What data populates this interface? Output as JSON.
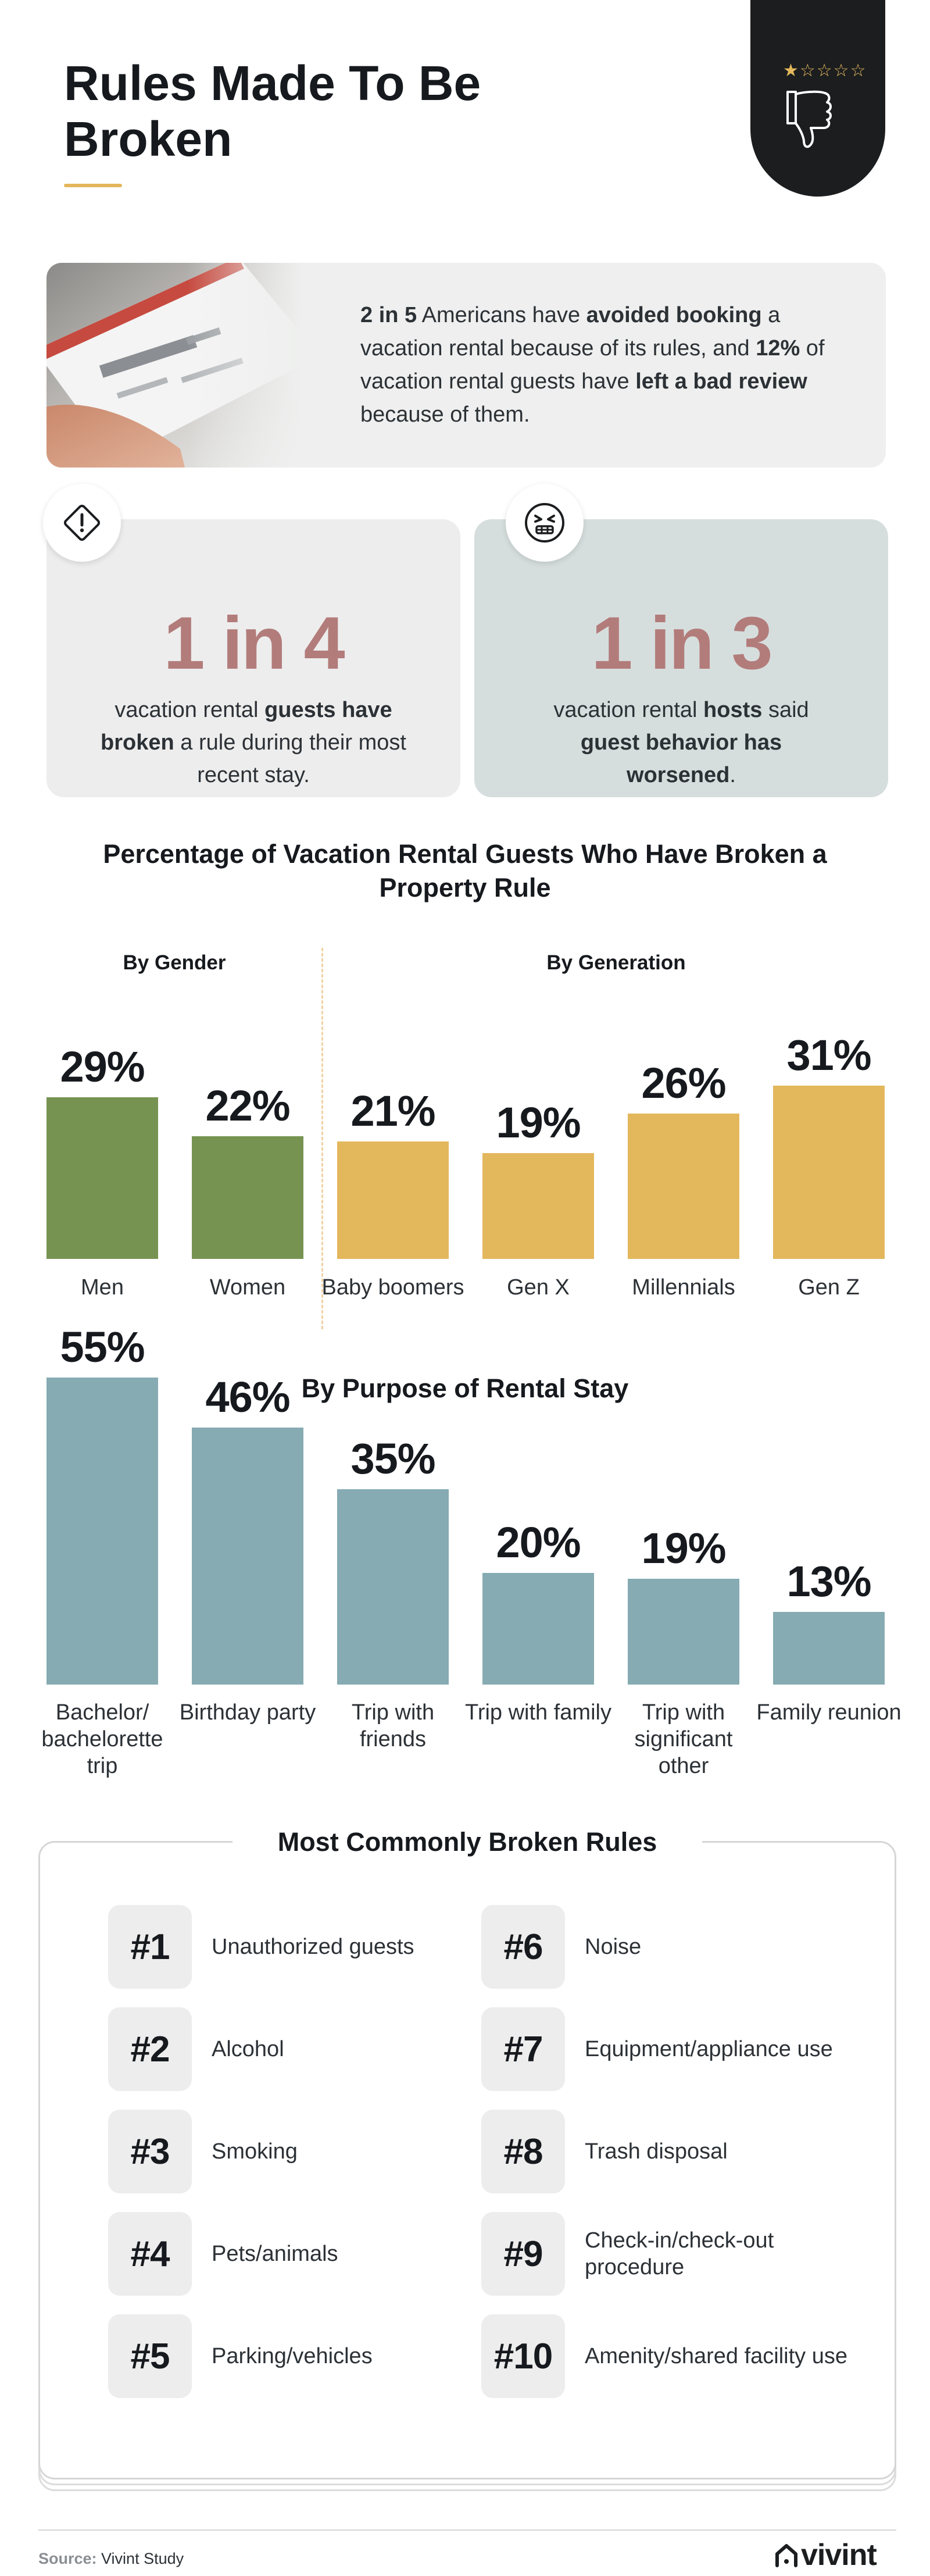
{
  "header": {
    "title": "Rules Made To Be Broken",
    "rating_stars": "★☆☆☆☆",
    "accent_color": "#e3b75c"
  },
  "intro": {
    "stat_a": "2 in 5",
    "text_a": " Americans have ",
    "bold_a": "avoided booking",
    "text_b": " a vacation rental because of its rules, and ",
    "stat_b": "12%",
    "text_c": " of vacation rental guests have ",
    "bold_b": "left a bad review",
    "text_d": " because of them."
  },
  "stats": [
    {
      "icon": "warning-diamond-icon",
      "value": "1 in 4",
      "line_a": "vacation rental ",
      "bold_a": "guests have broken",
      "line_b": " a rule during their most recent stay."
    },
    {
      "icon": "angry-face-icon",
      "value": "1 in 3",
      "line_a": "vacation rental ",
      "bold_a": "hosts",
      "line_b": " said ",
      "bold_b": "guest behavior has worsened",
      "line_c": "."
    }
  ],
  "chart": {
    "title": "Percentage of Vacation Rental Guests Who Have Broken a Property Rule",
    "gender_title": "By Gender",
    "generation_title": "By Generation",
    "purpose_title": "By Purpose of Rental Stay"
  },
  "chart_data": [
    {
      "type": "bar",
      "title": "By Gender",
      "categories": [
        "Men",
        "Women"
      ],
      "values": [
        29,
        22
      ],
      "unit": "%",
      "color": "#779351"
    },
    {
      "type": "bar",
      "title": "By Generation",
      "categories": [
        "Baby boomers",
        "Gen X",
        "Millennials",
        "Gen Z"
      ],
      "values": [
        21,
        19,
        26,
        31
      ],
      "unit": "%",
      "color": "#e3b75c"
    },
    {
      "type": "bar",
      "title": "By Purpose of Rental Stay",
      "categories": [
        "Bachelor/ bachelorette trip",
        "Birthday party",
        "Trip with friends",
        "Trip with family",
        "Trip with significant other",
        "Family reunion"
      ],
      "values": [
        55,
        46,
        35,
        20,
        19,
        13
      ],
      "unit": "%",
      "color": "#86abb2"
    }
  ],
  "rules": {
    "title": "Most Commonly Broken Rules",
    "items": [
      {
        "rank": "#1",
        "label": "Unauthorized guests"
      },
      {
        "rank": "#2",
        "label": "Alcohol"
      },
      {
        "rank": "#3",
        "label": "Smoking"
      },
      {
        "rank": "#4",
        "label": "Pets/animals"
      },
      {
        "rank": "#5",
        "label": "Parking/vehicles"
      },
      {
        "rank": "#6",
        "label": "Noise"
      },
      {
        "rank": "#7",
        "label": "Equipment/appliance use"
      },
      {
        "rank": "#8",
        "label": "Trash disposal"
      },
      {
        "rank": "#9",
        "label": "Check-in/check-out procedure"
      },
      {
        "rank": "#10",
        "label": "Amenity/shared facility use"
      }
    ]
  },
  "footer": {
    "source_label": "Source:",
    "source_value": " Vivint Study",
    "logo_text": "vivint"
  }
}
